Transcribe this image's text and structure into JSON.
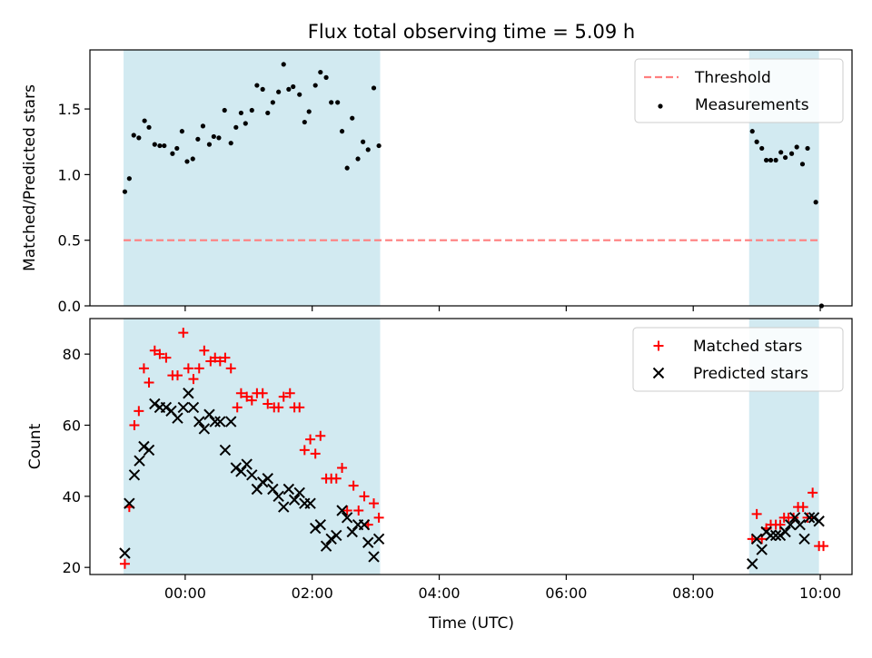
{
  "figure": {
    "title": "Flux total observing time = 5.09 h",
    "xlabel": "Time (UTC)"
  },
  "chart_data": [
    {
      "type": "scatter",
      "panel": "top",
      "title": "Flux total observing time = 5.09 h",
      "xlabel": "",
      "ylabel": "Matched/Predicted stars",
      "x_unit": "hours (UTC)",
      "xlim": [
        -1.5,
        10.5
      ],
      "ylim": [
        0,
        1.95
      ],
      "xticks": [
        0,
        2,
        4,
        6,
        8,
        10
      ],
      "xtick_labels": [
        "00:00",
        "02:00",
        "04:00",
        "06:00",
        "08:00",
        "10:00"
      ],
      "show_xtick_labels": false,
      "yticks": [
        0,
        0.5,
        1.0,
        1.5
      ],
      "ytick_labels": [
        "0.0",
        "0.5",
        "1.0",
        "1.5"
      ],
      "grid": false,
      "legend_position": "top-right",
      "shaded_intervals": [
        {
          "x0": -0.97,
          "x1": 3.07,
          "color": "#add8e6"
        },
        {
          "x0": 8.88,
          "x1": 9.98,
          "color": "#add8e6"
        }
      ],
      "threshold": {
        "name": "Threshold",
        "y": 0.5,
        "x0": -0.97,
        "x1": 9.98,
        "color": "#ff7f7f",
        "style": "dashed"
      },
      "series": [
        {
          "name": "Measurements",
          "marker": "dot",
          "color": "#000000",
          "points": [
            [
              -0.95,
              0.87
            ],
            [
              -0.88,
              0.97
            ],
            [
              -0.81,
              1.3
            ],
            [
              -0.73,
              1.28
            ],
            [
              -0.64,
              1.41
            ],
            [
              -0.57,
              1.36
            ],
            [
              -0.48,
              1.23
            ],
            [
              -0.4,
              1.22
            ],
            [
              -0.33,
              1.22
            ],
            [
              -0.2,
              1.16
            ],
            [
              -0.13,
              1.2
            ],
            [
              -0.05,
              1.33
            ],
            [
              0.03,
              1.1
            ],
            [
              0.12,
              1.12
            ],
            [
              0.2,
              1.27
            ],
            [
              0.28,
              1.37
            ],
            [
              0.38,
              1.23
            ],
            [
              0.45,
              1.29
            ],
            [
              0.53,
              1.28
            ],
            [
              0.62,
              1.49
            ],
            [
              0.72,
              1.24
            ],
            [
              0.8,
              1.36
            ],
            [
              0.88,
              1.47
            ],
            [
              0.95,
              1.39
            ],
            [
              1.05,
              1.49
            ],
            [
              1.13,
              1.68
            ],
            [
              1.22,
              1.65
            ],
            [
              1.3,
              1.47
            ],
            [
              1.38,
              1.55
            ],
            [
              1.47,
              1.63
            ],
            [
              1.55,
              1.84
            ],
            [
              1.63,
              1.65
            ],
            [
              1.7,
              1.67
            ],
            [
              1.8,
              1.61
            ],
            [
              1.88,
              1.4
            ],
            [
              1.95,
              1.48
            ],
            [
              2.05,
              1.68
            ],
            [
              2.13,
              1.78
            ],
            [
              2.22,
              1.74
            ],
            [
              2.3,
              1.55
            ],
            [
              2.4,
              1.55
            ],
            [
              2.47,
              1.33
            ],
            [
              2.55,
              1.05
            ],
            [
              2.63,
              1.43
            ],
            [
              2.72,
              1.12
            ],
            [
              2.8,
              1.25
            ],
            [
              2.88,
              1.19
            ],
            [
              2.97,
              1.66
            ],
            [
              3.05,
              1.22
            ],
            [
              8.93,
              1.33
            ],
            [
              9.0,
              1.25
            ],
            [
              9.08,
              1.2
            ],
            [
              9.15,
              1.11
            ],
            [
              9.22,
              1.11
            ],
            [
              9.3,
              1.11
            ],
            [
              9.38,
              1.17
            ],
            [
              9.45,
              1.13
            ],
            [
              9.55,
              1.16
            ],
            [
              9.63,
              1.21
            ],
            [
              9.72,
              1.08
            ],
            [
              9.8,
              1.2
            ],
            [
              9.93,
              0.79
            ],
            [
              10.02,
              0.0
            ]
          ]
        }
      ]
    },
    {
      "type": "scatter",
      "panel": "bottom",
      "xlabel": "Time (UTC)",
      "ylabel": "Count",
      "x_unit": "hours (UTC)",
      "xlim": [
        -1.5,
        10.5
      ],
      "ylim": [
        18,
        90
      ],
      "xticks": [
        0,
        2,
        4,
        6,
        8,
        10
      ],
      "xtick_labels": [
        "00:00",
        "02:00",
        "04:00",
        "06:00",
        "08:00",
        "10:00"
      ],
      "show_xtick_labels": true,
      "yticks": [
        20,
        40,
        60,
        80
      ],
      "ytick_labels": [
        "20",
        "40",
        "60",
        "80"
      ],
      "grid": false,
      "legend_position": "top-right",
      "shaded_intervals": [
        {
          "x0": -0.97,
          "x1": 3.07,
          "color": "#add8e6"
        },
        {
          "x0": 8.88,
          "x1": 9.98,
          "color": "#add8e6"
        }
      ],
      "series": [
        {
          "name": "Matched stars",
          "marker": "plus",
          "color": "#ff0000",
          "points": [
            [
              -0.95,
              21
            ],
            [
              -0.88,
              37
            ],
            [
              -0.8,
              60
            ],
            [
              -0.73,
              64
            ],
            [
              -0.65,
              76
            ],
            [
              -0.57,
              72
            ],
            [
              -0.48,
              81
            ],
            [
              -0.4,
              80
            ],
            [
              -0.3,
              79
            ],
            [
              -0.2,
              74
            ],
            [
              -0.12,
              74
            ],
            [
              -0.03,
              86
            ],
            [
              0.05,
              76
            ],
            [
              0.13,
              73
            ],
            [
              0.22,
              76
            ],
            [
              0.3,
              81
            ],
            [
              0.4,
              78
            ],
            [
              0.47,
              79
            ],
            [
              0.55,
              78
            ],
            [
              0.63,
              79
            ],
            [
              0.72,
              76
            ],
            [
              0.82,
              65
            ],
            [
              0.88,
              69
            ],
            [
              0.97,
              68
            ],
            [
              1.05,
              67
            ],
            [
              1.13,
              69
            ],
            [
              1.22,
              69
            ],
            [
              1.3,
              66
            ],
            [
              1.4,
              65
            ],
            [
              1.47,
              65
            ],
            [
              1.55,
              68
            ],
            [
              1.65,
              69
            ],
            [
              1.72,
              65
            ],
            [
              1.8,
              65
            ],
            [
              1.88,
              53
            ],
            [
              1.97,
              56
            ],
            [
              2.05,
              52
            ],
            [
              2.13,
              57
            ],
            [
              2.22,
              45
            ],
            [
              2.3,
              45
            ],
            [
              2.38,
              45
            ],
            [
              2.47,
              48
            ],
            [
              2.55,
              36
            ],
            [
              2.65,
              43
            ],
            [
              2.73,
              36
            ],
            [
              2.82,
              40
            ],
            [
              2.88,
              32
            ],
            [
              2.97,
              38
            ],
            [
              3.05,
              34
            ],
            [
              8.93,
              28
            ],
            [
              9.0,
              35
            ],
            [
              9.08,
              28
            ],
            [
              9.15,
              31
            ],
            [
              9.22,
              32
            ],
            [
              9.3,
              32
            ],
            [
              9.37,
              32
            ],
            [
              9.43,
              34
            ],
            [
              9.5,
              34
            ],
            [
              9.58,
              34
            ],
            [
              9.65,
              37
            ],
            [
              9.73,
              37
            ],
            [
              9.8,
              34
            ],
            [
              9.88,
              41
            ],
            [
              9.98,
              26
            ],
            [
              10.05,
              26
            ]
          ]
        },
        {
          "name": "Predicted stars",
          "marker": "x",
          "color": "#000000",
          "points": [
            [
              -0.95,
              24
            ],
            [
              -0.88,
              38
            ],
            [
              -0.8,
              46
            ],
            [
              -0.72,
              50
            ],
            [
              -0.65,
              54
            ],
            [
              -0.57,
              53
            ],
            [
              -0.48,
              66
            ],
            [
              -0.4,
              65
            ],
            [
              -0.3,
              65
            ],
            [
              -0.22,
              64
            ],
            [
              -0.12,
              62
            ],
            [
              -0.03,
              65
            ],
            [
              0.05,
              69
            ],
            [
              0.13,
              65
            ],
            [
              0.22,
              61
            ],
            [
              0.3,
              59
            ],
            [
              0.38,
              63
            ],
            [
              0.47,
              61
            ],
            [
              0.55,
              61
            ],
            [
              0.63,
              53
            ],
            [
              0.72,
              61
            ],
            [
              0.8,
              48
            ],
            [
              0.88,
              47
            ],
            [
              0.97,
              49
            ],
            [
              1.05,
              46
            ],
            [
              1.13,
              42
            ],
            [
              1.22,
              44
            ],
            [
              1.3,
              45
            ],
            [
              1.38,
              42
            ],
            [
              1.47,
              40
            ],
            [
              1.55,
              37
            ],
            [
              1.63,
              42
            ],
            [
              1.72,
              39
            ],
            [
              1.8,
              41
            ],
            [
              1.88,
              38
            ],
            [
              1.97,
              38
            ],
            [
              2.05,
              31
            ],
            [
              2.13,
              32
            ],
            [
              2.22,
              26
            ],
            [
              2.3,
              28
            ],
            [
              2.38,
              29
            ],
            [
              2.47,
              36
            ],
            [
              2.55,
              34
            ],
            [
              2.63,
              30
            ],
            [
              2.72,
              32
            ],
            [
              2.82,
              32
            ],
            [
              2.88,
              27
            ],
            [
              2.97,
              23
            ],
            [
              3.05,
              28
            ],
            [
              8.93,
              21
            ],
            [
              9.0,
              28
            ],
            [
              9.08,
              25
            ],
            [
              9.15,
              30
            ],
            [
              9.22,
              29
            ],
            [
              9.3,
              29
            ],
            [
              9.37,
              29
            ],
            [
              9.45,
              30
            ],
            [
              9.53,
              32
            ],
            [
              9.6,
              34
            ],
            [
              9.68,
              32
            ],
            [
              9.75,
              28
            ],
            [
              9.83,
              34
            ],
            [
              9.9,
              34
            ],
            [
              9.98,
              33
            ]
          ]
        }
      ]
    }
  ]
}
